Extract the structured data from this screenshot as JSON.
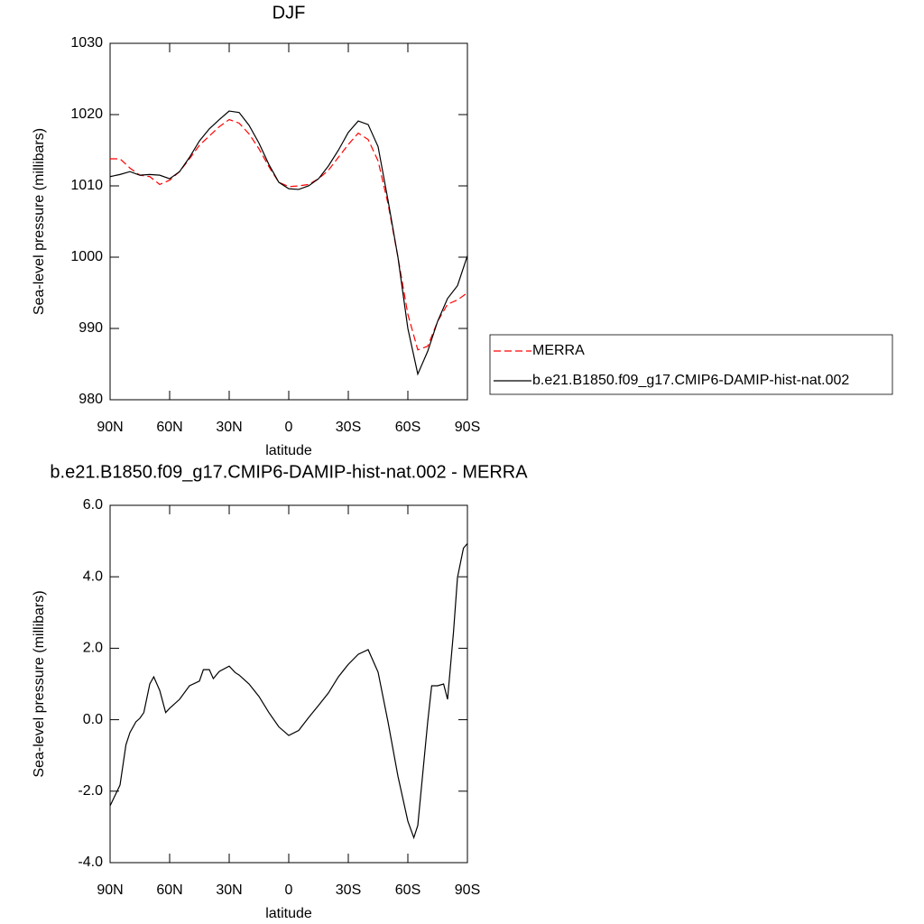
{
  "chart_data": [
    {
      "type": "line",
      "title": "DJF",
      "x_label": "latitude",
      "y_label": "Sea-level pressure (millibars)",
      "x": [
        90,
        85,
        80,
        75,
        70,
        65,
        60,
        55,
        50,
        45,
        40,
        35,
        30,
        25,
        20,
        15,
        10,
        5,
        0,
        -5,
        -10,
        -15,
        -20,
        -25,
        -30,
        -35,
        -40,
        -45,
        -50,
        -55,
        -60,
        -65,
        -70,
        -75,
        -80,
        -85,
        -90
      ],
      "series": [
        {
          "name": "MERRA",
          "color": "#ff0000",
          "line_style": "dashed",
          "values": [
            1013.8,
            1013.8,
            1012.5,
            1011.5,
            1011.3,
            1010.2,
            1010.8,
            1012,
            1013.8,
            1015.7,
            1017,
            1018.3,
            1019.3,
            1018.8,
            1017.3,
            1015.2,
            1012.7,
            1010.5,
            1009.9,
            1010,
            1010.2,
            1011,
            1012.2,
            1014,
            1015.8,
            1017.4,
            1016.5,
            1013.5,
            1007.5,
            1000,
            992,
            987,
            987.5,
            991,
            993.4,
            994,
            995
          ]
        },
        {
          "name": "b.e21.B1850.f09_g17.CMIP6-DAMIP-hist-nat.002",
          "color": "#000000",
          "line_style": "solid",
          "values": [
            1011.3,
            1011.6,
            1012,
            1011.5,
            1011.6,
            1011.5,
            1011,
            1012,
            1014,
            1016.3,
            1018,
            1019.3,
            1020.5,
            1020.3,
            1018.5,
            1016,
            1013,
            1010.5,
            1009.6,
            1009.5,
            1010,
            1011,
            1012.8,
            1015,
            1017.5,
            1019.1,
            1018.6,
            1015.5,
            1008,
            1000,
            990,
            983.6,
            986.8,
            991,
            994.2,
            996,
            1000.2
          ]
        }
      ],
      "xlim": [
        90,
        -90
      ],
      "xticks": [
        {
          "value": 90,
          "label": "90N"
        },
        {
          "value": 60,
          "label": "60N"
        },
        {
          "value": 30,
          "label": "30N"
        },
        0,
        {
          "value": -30,
          "label": "30S"
        },
        {
          "value": -60,
          "label": "60S"
        },
        {
          "value": -90,
          "label": "90S"
        }
      ],
      "ylim": [
        980,
        1030
      ],
      "yticks": [
        980,
        990,
        1000,
        1010,
        1020,
        1030
      ],
      "legend": "right"
    },
    {
      "type": "line",
      "title": "b.e21.B1850.f09_g17.CMIP6-DAMIP-hist-nat.002 - MERRA",
      "x_label": "latitude",
      "y_label": "Sea-level pressure (millibars)",
      "x": [
        90,
        85,
        82,
        80,
        77,
        75,
        73,
        70,
        68,
        65,
        62,
        60,
        55,
        50,
        45,
        43,
        40,
        38,
        35,
        30,
        27,
        25,
        20,
        15,
        10,
        5,
        0,
        -5,
        -10,
        -15,
        -20,
        -25,
        -30,
        -35,
        -40,
        -45,
        -50,
        -55,
        -60,
        -63,
        -65,
        -70,
        -72,
        -75,
        -78,
        -80,
        -83,
        -85,
        -88,
        -90
      ],
      "series": [
        {
          "name": "b.e21.B1850.f09_g17.CMIP6-DAMIP-hist-nat.002 - MERRA",
          "color": "#000000",
          "line_style": "solid",
          "values": [
            -2.41,
            -1.83,
            -0.7,
            -0.36,
            -0.06,
            0.04,
            0.2,
            1.0,
            1.2,
            0.82,
            0.2,
            0.32,
            0.57,
            0.95,
            1.08,
            1.4,
            1.4,
            1.15,
            1.35,
            1.5,
            1.32,
            1.25,
            1.0,
            0.65,
            0.2,
            -0.2,
            -0.44,
            -0.3,
            0.06,
            0.4,
            0.75,
            1.2,
            1.55,
            1.83,
            1.96,
            1.33,
            -0.06,
            -1.58,
            -2.84,
            -3.3,
            -2.96,
            -0.06,
            0.95,
            0.95,
            1.0,
            0.57,
            2.46,
            3.98,
            4.8,
            4.93
          ]
        }
      ],
      "xlim": [
        90,
        -90
      ],
      "xticks": [
        {
          "value": 90,
          "label": "90N"
        },
        {
          "value": 60,
          "label": "60N"
        },
        {
          "value": 30,
          "label": "30N"
        },
        0,
        {
          "value": -30,
          "label": "30S"
        },
        {
          "value": -60,
          "label": "60S"
        },
        {
          "value": -90,
          "label": "90S"
        }
      ],
      "ylim": [
        -4,
        6
      ],
      "yticks": [
        {
          "value": -4,
          "label": "-4.0"
        },
        {
          "value": -2,
          "label": "-2.0"
        },
        {
          "value": 0,
          "label": "0.0"
        },
        {
          "value": 2,
          "label": "2.0"
        },
        {
          "value": 4,
          "label": "4.0"
        },
        {
          "value": 6,
          "label": "6.0"
        }
      ]
    }
  ]
}
